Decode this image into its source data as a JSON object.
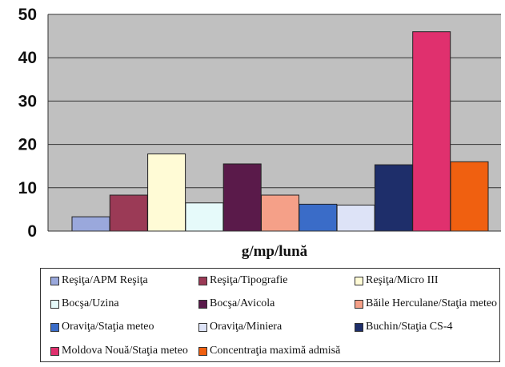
{
  "chart_data": {
    "type": "bar",
    "xlabel": "g/mp/lună",
    "ylim": [
      0,
      50
    ],
    "yticks": [
      0,
      10,
      20,
      30,
      40,
      50
    ],
    "grid": true,
    "legend_position": "bottom",
    "series": [
      {
        "name": "Reşiţa/APM Reşiţa",
        "value": 3.3,
        "color": "#9aa8dc"
      },
      {
        "name": "Reşiţa/Tipografie",
        "value": 8.3,
        "color": "#9b3a56"
      },
      {
        "name": "Reşiţa/Micro III",
        "value": 17.8,
        "color": "#fffbd6"
      },
      {
        "name": "Bocşa/Uzina",
        "value": 6.5,
        "color": "#e6fafa"
      },
      {
        "name": "Bocşa/Avicola",
        "value": 15.5,
        "color": "#5a1a4a"
      },
      {
        "name": "Băile Herculane/Staţia meteo",
        "value": 8.3,
        "color": "#f5a088"
      },
      {
        "name": "Oraviţa/Staţia meteo",
        "value": 6.2,
        "color": "#3a6cc8"
      },
      {
        "name": "Oraviţa/Miniera",
        "value": 6.0,
        "color": "#dde3f7"
      },
      {
        "name": "Buchin/Staţia CS-4",
        "value": 15.3,
        "color": "#1e2e6a"
      },
      {
        "name": "Moldova Nouă/Staţia meteo",
        "value": 46.0,
        "color": "#e0306e"
      },
      {
        "name": "Concentraţia maximă admisă",
        "value": 16.0,
        "color": "#f06010"
      }
    ]
  }
}
